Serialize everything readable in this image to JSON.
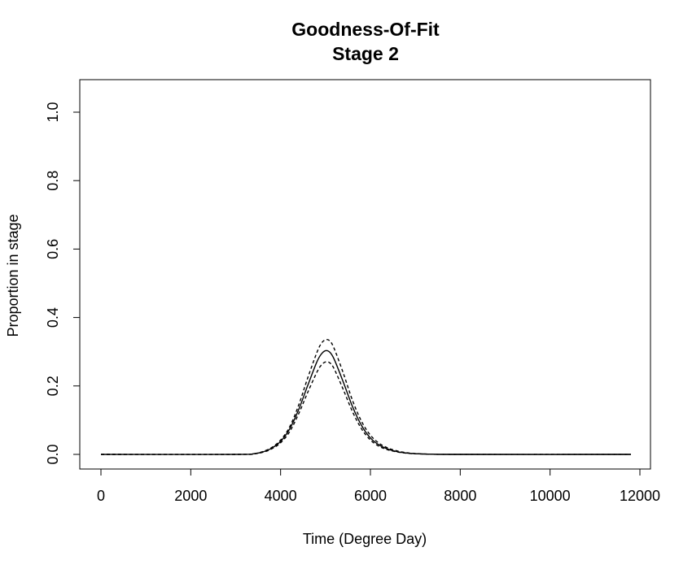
{
  "chart_data": {
    "type": "line",
    "title": "Goodness-Of-Fit",
    "subtitle": "Stage 2",
    "xlabel": "Time (Degree Day)",
    "ylabel": "Proportion in stage",
    "xlim": [
      0,
      12000
    ],
    "ylim": [
      0,
      1.0
    ],
    "x_ticks": [
      0,
      2000,
      4000,
      6000,
      8000,
      10000,
      12000
    ],
    "x_tick_labels": [
      "0",
      "2000",
      "4000",
      "6000",
      "8000",
      "10000",
      "12000"
    ],
    "y_ticks": [
      0.0,
      0.2,
      0.4,
      0.6,
      0.8,
      1.0
    ],
    "y_tick_labels": [
      "0.0",
      "0.2",
      "0.4",
      "0.6",
      "0.8",
      "1.0"
    ],
    "grid": false,
    "legend": "none",
    "x": [
      0,
      3000,
      3400,
      3600,
      3800,
      4000,
      4200,
      4400,
      4600,
      4800,
      4900,
      5000,
      5100,
      5200,
      5400,
      5600,
      5800,
      6000,
      6200,
      6400,
      6600,
      6800,
      7000,
      7400,
      8000,
      11800
    ],
    "series": [
      {
        "style": "solid",
        "color": "#000000",
        "values": [
          0,
          0,
          0.002,
          0.007,
          0.018,
          0.038,
          0.074,
          0.13,
          0.2,
          0.268,
          0.292,
          0.303,
          0.298,
          0.276,
          0.21,
          0.14,
          0.085,
          0.048,
          0.027,
          0.015,
          0.008,
          0.004,
          0.002,
          0.0005,
          0,
          0
        ]
      },
      {
        "style": "dashed",
        "color": "#000000",
        "values": [
          0,
          0,
          0.002,
          0.008,
          0.02,
          0.042,
          0.08,
          0.143,
          0.222,
          0.295,
          0.323,
          0.335,
          0.331,
          0.307,
          0.236,
          0.158,
          0.097,
          0.056,
          0.032,
          0.018,
          0.01,
          0.005,
          0.0025,
          0.0006,
          0,
          0
        ]
      },
      {
        "style": "dashed",
        "color": "#000000",
        "values": [
          0,
          0,
          0.0015,
          0.006,
          0.016,
          0.034,
          0.066,
          0.118,
          0.18,
          0.238,
          0.26,
          0.27,
          0.267,
          0.248,
          0.188,
          0.125,
          0.075,
          0.042,
          0.023,
          0.013,
          0.007,
          0.0035,
          0.0018,
          0.0004,
          0,
          0
        ]
      }
    ]
  }
}
